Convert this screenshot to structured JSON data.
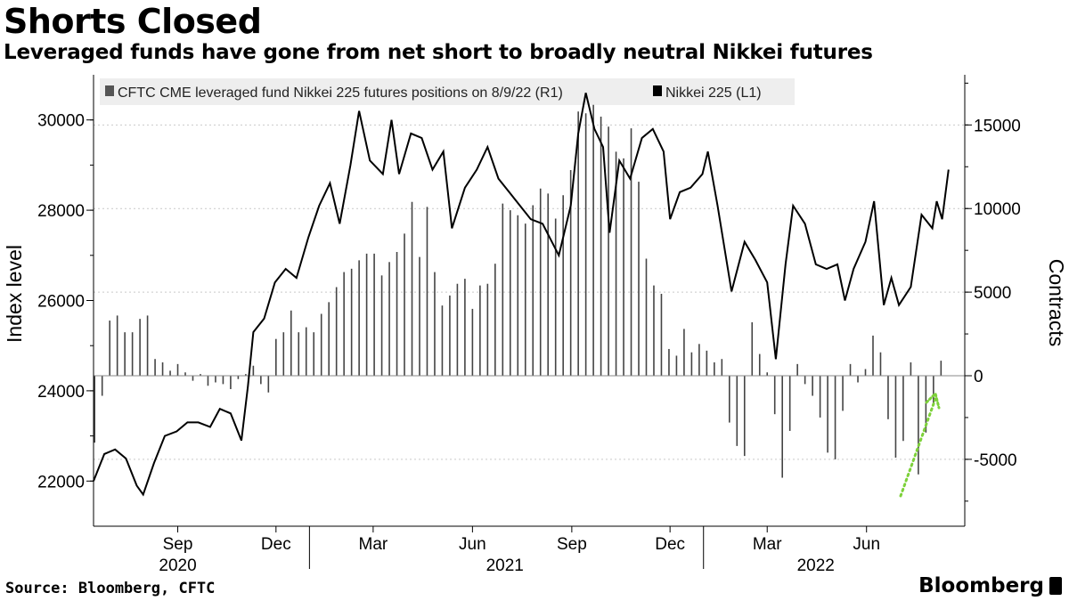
{
  "title": "Shorts Closed",
  "subtitle": "Leveraged funds have gone from net short to broadly neutral Nikkei futures",
  "source": "Source: Bloomberg, CFTC",
  "brand": "Bloomberg",
  "colors": {
    "line": "#000000",
    "bars": "#444444",
    "arrow": "#7dd13a",
    "grid": "#c9c9c9",
    "legend_bg": "#eeeeee"
  },
  "chart_data": {
    "type": "line+bar",
    "legend": [
      {
        "label": "CFTC CME leveraged fund Nikkei 225 futures positions on 8/9/22 (R1)",
        "color": "#555555"
      },
      {
        "label": "Nikkei 225  (L1)",
        "color": "#000000"
      }
    ],
    "left_axis": {
      "title": "Index level",
      "range": [
        21000,
        31000
      ],
      "ticks": [
        22000,
        24000,
        26000,
        28000,
        30000
      ],
      "tick_labels": [
        "22000",
        "24000",
        "26000",
        "28000",
        "30000"
      ]
    },
    "right_axis": {
      "title": "Contracts",
      "range": [
        -9000,
        18000
      ],
      "ticks": [
        -5000,
        0,
        5000,
        10000,
        15000
      ],
      "tick_labels": [
        "-5000",
        "0",
        "5000",
        "10000",
        "15000"
      ]
    },
    "x_axis": {
      "range": [
        "2020-06-15",
        "2022-08-31"
      ],
      "month_ticks": [
        {
          "date": "2020-09-01",
          "label": "Sep"
        },
        {
          "date": "2020-12-01",
          "label": "Dec"
        },
        {
          "date": "2021-03-01",
          "label": "Mar"
        },
        {
          "date": "2021-06-01",
          "label": "Jun"
        },
        {
          "date": "2021-09-01",
          "label": "Sep"
        },
        {
          "date": "2021-12-01",
          "label": "Dec"
        },
        {
          "date": "2022-03-01",
          "label": "Mar"
        },
        {
          "date": "2022-06-01",
          "label": "Jun"
        }
      ],
      "year_labels": [
        {
          "date": "2020-09-01",
          "label": "2020"
        },
        {
          "date": "2021-07-01",
          "label": "2021"
        },
        {
          "date": "2022-04-15",
          "label": "2022"
        }
      ]
    },
    "nikkei_series": {
      "name": "Nikkei 225",
      "points": [
        [
          "2020-06-15",
          22000
        ],
        [
          "2020-06-25",
          22600
        ],
        [
          "2020-07-05",
          22700
        ],
        [
          "2020-07-15",
          22500
        ],
        [
          "2020-07-25",
          21900
        ],
        [
          "2020-07-31",
          21700
        ],
        [
          "2020-08-10",
          22400
        ],
        [
          "2020-08-20",
          23000
        ],
        [
          "2020-08-31",
          23100
        ],
        [
          "2020-09-10",
          23300
        ],
        [
          "2020-09-20",
          23300
        ],
        [
          "2020-10-01",
          23200
        ],
        [
          "2020-10-10",
          23600
        ],
        [
          "2020-10-20",
          23500
        ],
        [
          "2020-10-30",
          22900
        ],
        [
          "2020-11-05",
          24100
        ],
        [
          "2020-11-10",
          25300
        ],
        [
          "2020-11-20",
          25600
        ],
        [
          "2020-11-30",
          26400
        ],
        [
          "2020-12-10",
          26700
        ],
        [
          "2020-12-20",
          26500
        ],
        [
          "2020-12-31",
          27400
        ],
        [
          "2021-01-10",
          28100
        ],
        [
          "2021-01-20",
          28600
        ],
        [
          "2021-01-29",
          27700
        ],
        [
          "2021-02-08",
          29000
        ],
        [
          "2021-02-16",
          30200
        ],
        [
          "2021-02-26",
          29100
        ],
        [
          "2021-03-10",
          28800
        ],
        [
          "2021-03-18",
          30000
        ],
        [
          "2021-03-25",
          28800
        ],
        [
          "2021-04-05",
          29700
        ],
        [
          "2021-04-15",
          29600
        ],
        [
          "2021-04-25",
          28900
        ],
        [
          "2021-05-05",
          29300
        ],
        [
          "2021-05-13",
          27600
        ],
        [
          "2021-05-25",
          28500
        ],
        [
          "2021-06-05",
          28900
        ],
        [
          "2021-06-15",
          29400
        ],
        [
          "2021-06-25",
          28700
        ],
        [
          "2021-07-05",
          28400
        ],
        [
          "2021-07-15",
          28100
        ],
        [
          "2021-07-25",
          27800
        ],
        [
          "2021-08-05",
          27700
        ],
        [
          "2021-08-20",
          27000
        ],
        [
          "2021-08-31",
          28100
        ],
        [
          "2021-09-07",
          29700
        ],
        [
          "2021-09-14",
          30600
        ],
        [
          "2021-09-22",
          29800
        ],
        [
          "2021-09-30",
          29400
        ],
        [
          "2021-10-06",
          27500
        ],
        [
          "2021-10-15",
          29100
        ],
        [
          "2021-10-25",
          28700
        ],
        [
          "2021-11-05",
          29600
        ],
        [
          "2021-11-15",
          29800
        ],
        [
          "2021-11-25",
          29300
        ],
        [
          "2021-12-01",
          27800
        ],
        [
          "2021-12-10",
          28400
        ],
        [
          "2021-12-20",
          28500
        ],
        [
          "2021-12-31",
          28800
        ],
        [
          "2022-01-05",
          29300
        ],
        [
          "2022-01-14",
          28100
        ],
        [
          "2022-01-27",
          26200
        ],
        [
          "2022-02-08",
          27300
        ],
        [
          "2022-02-18",
          26900
        ],
        [
          "2022-03-01",
          26400
        ],
        [
          "2022-03-09",
          24700
        ],
        [
          "2022-03-18",
          26800
        ],
        [
          "2022-03-25",
          28100
        ],
        [
          "2022-04-05",
          27700
        ],
        [
          "2022-04-15",
          26800
        ],
        [
          "2022-04-25",
          26700
        ],
        [
          "2022-05-05",
          26800
        ],
        [
          "2022-05-12",
          26000
        ],
        [
          "2022-05-20",
          26700
        ],
        [
          "2022-05-31",
          27300
        ],
        [
          "2022-06-08",
          28200
        ],
        [
          "2022-06-17",
          25900
        ],
        [
          "2022-06-24",
          26500
        ],
        [
          "2022-07-01",
          25900
        ],
        [
          "2022-07-12",
          26300
        ],
        [
          "2022-07-22",
          27900
        ],
        [
          "2022-08-01",
          27600
        ],
        [
          "2022-08-05",
          28200
        ],
        [
          "2022-08-10",
          27800
        ],
        [
          "2022-08-16",
          28900
        ]
      ]
    },
    "positions_series": {
      "name": "CFTC CME leveraged fund Nikkei 225 futures positions",
      "points": [
        [
          "2020-06-16",
          -4000
        ],
        [
          "2020-06-23",
          -1200
        ],
        [
          "2020-06-30",
          3300
        ],
        [
          "2020-07-07",
          3600
        ],
        [
          "2020-07-14",
          2600
        ],
        [
          "2020-07-21",
          2600
        ],
        [
          "2020-07-28",
          3400
        ],
        [
          "2020-08-04",
          3600
        ],
        [
          "2020-08-11",
          1000
        ],
        [
          "2020-08-18",
          800
        ],
        [
          "2020-08-25",
          300
        ],
        [
          "2020-09-01",
          700
        ],
        [
          "2020-09-08",
          200
        ],
        [
          "2020-09-15",
          -300
        ],
        [
          "2020-09-22",
          100
        ],
        [
          "2020-09-29",
          -600
        ],
        [
          "2020-10-06",
          -400
        ],
        [
          "2020-10-13",
          -500
        ],
        [
          "2020-10-20",
          -800
        ],
        [
          "2020-10-27",
          -200
        ],
        [
          "2020-11-03",
          100
        ],
        [
          "2020-11-10",
          600
        ],
        [
          "2020-11-17",
          -500
        ],
        [
          "2020-11-24",
          -1000
        ],
        [
          "2020-12-01",
          2200
        ],
        [
          "2020-12-08",
          2600
        ],
        [
          "2020-12-15",
          3900
        ],
        [
          "2020-12-22",
          2600
        ],
        [
          "2020-12-29",
          2900
        ],
        [
          "2021-01-05",
          2600
        ],
        [
          "2021-01-12",
          3700
        ],
        [
          "2021-01-19",
          4400
        ],
        [
          "2021-01-26",
          5300
        ],
        [
          "2021-02-02",
          6200
        ],
        [
          "2021-02-09",
          6400
        ],
        [
          "2021-02-16",
          6900
        ],
        [
          "2021-02-23",
          7300
        ],
        [
          "2021-03-02",
          7300
        ],
        [
          "2021-03-09",
          6000
        ],
        [
          "2021-03-16",
          6800
        ],
        [
          "2021-03-23",
          7400
        ],
        [
          "2021-03-30",
          8500
        ],
        [
          "2021-04-06",
          10400
        ],
        [
          "2021-04-13",
          7100
        ],
        [
          "2021-04-20",
          10100
        ],
        [
          "2021-04-27",
          6200
        ],
        [
          "2021-05-04",
          4200
        ],
        [
          "2021-05-11",
          4800
        ],
        [
          "2021-05-18",
          5500
        ],
        [
          "2021-05-25",
          5800
        ],
        [
          "2021-06-01",
          4000
        ],
        [
          "2021-06-08",
          5400
        ],
        [
          "2021-06-15",
          5500
        ],
        [
          "2021-06-22",
          6700
        ],
        [
          "2021-06-29",
          10300
        ],
        [
          "2021-07-06",
          9900
        ],
        [
          "2021-07-13",
          9600
        ],
        [
          "2021-07-20",
          9100
        ],
        [
          "2021-07-27",
          10200
        ],
        [
          "2021-08-03",
          11200
        ],
        [
          "2021-08-10",
          10900
        ],
        [
          "2021-08-17",
          9400
        ],
        [
          "2021-08-24",
          10800
        ],
        [
          "2021-08-31",
          12300
        ],
        [
          "2021-09-07",
          15800
        ],
        [
          "2021-09-14",
          15700
        ],
        [
          "2021-09-21",
          16200
        ],
        [
          "2021-09-28",
          15500
        ],
        [
          "2021-10-05",
          14900
        ],
        [
          "2021-10-12",
          13400
        ],
        [
          "2021-10-19",
          13000
        ],
        [
          "2021-10-26",
          14800
        ],
        [
          "2021-11-02",
          11600
        ],
        [
          "2021-11-09",
          7000
        ],
        [
          "2021-11-16",
          5400
        ],
        [
          "2021-11-23",
          4900
        ],
        [
          "2021-11-30",
          1600
        ],
        [
          "2021-12-07",
          1200
        ],
        [
          "2021-12-14",
          2800
        ],
        [
          "2021-12-21",
          1400
        ],
        [
          "2021-12-28",
          1900
        ],
        [
          "2022-01-04",
          1500
        ],
        [
          "2022-01-11",
          800
        ],
        [
          "2022-01-18",
          1000
        ],
        [
          "2022-01-25",
          -2800
        ],
        [
          "2022-02-01",
          -4200
        ],
        [
          "2022-02-08",
          -4800
        ],
        [
          "2022-02-15",
          3200
        ],
        [
          "2022-02-22",
          1300
        ],
        [
          "2022-03-01",
          200
        ],
        [
          "2022-03-08",
          -2300
        ],
        [
          "2022-03-15",
          -6100
        ],
        [
          "2022-03-22",
          -3300
        ],
        [
          "2022-03-29",
          700
        ],
        [
          "2022-04-05",
          -500
        ],
        [
          "2022-04-12",
          -1200
        ],
        [
          "2022-04-19",
          -2500
        ],
        [
          "2022-04-26",
          -4600
        ],
        [
          "2022-05-03",
          -5000
        ],
        [
          "2022-05-10",
          -2100
        ],
        [
          "2022-05-17",
          700
        ],
        [
          "2022-05-24",
          -400
        ],
        [
          "2022-05-31",
          400
        ],
        [
          "2022-06-07",
          2400
        ],
        [
          "2022-06-14",
          1400
        ],
        [
          "2022-06-21",
          -2600
        ],
        [
          "2022-06-28",
          -4900
        ],
        [
          "2022-07-05",
          -3900
        ],
        [
          "2022-07-12",
          800
        ],
        [
          "2022-07-19",
          -5900
        ],
        [
          "2022-07-26",
          -3400
        ],
        [
          "2022-08-02",
          -1700
        ],
        [
          "2022-08-09",
          900
        ]
      ]
    }
  }
}
